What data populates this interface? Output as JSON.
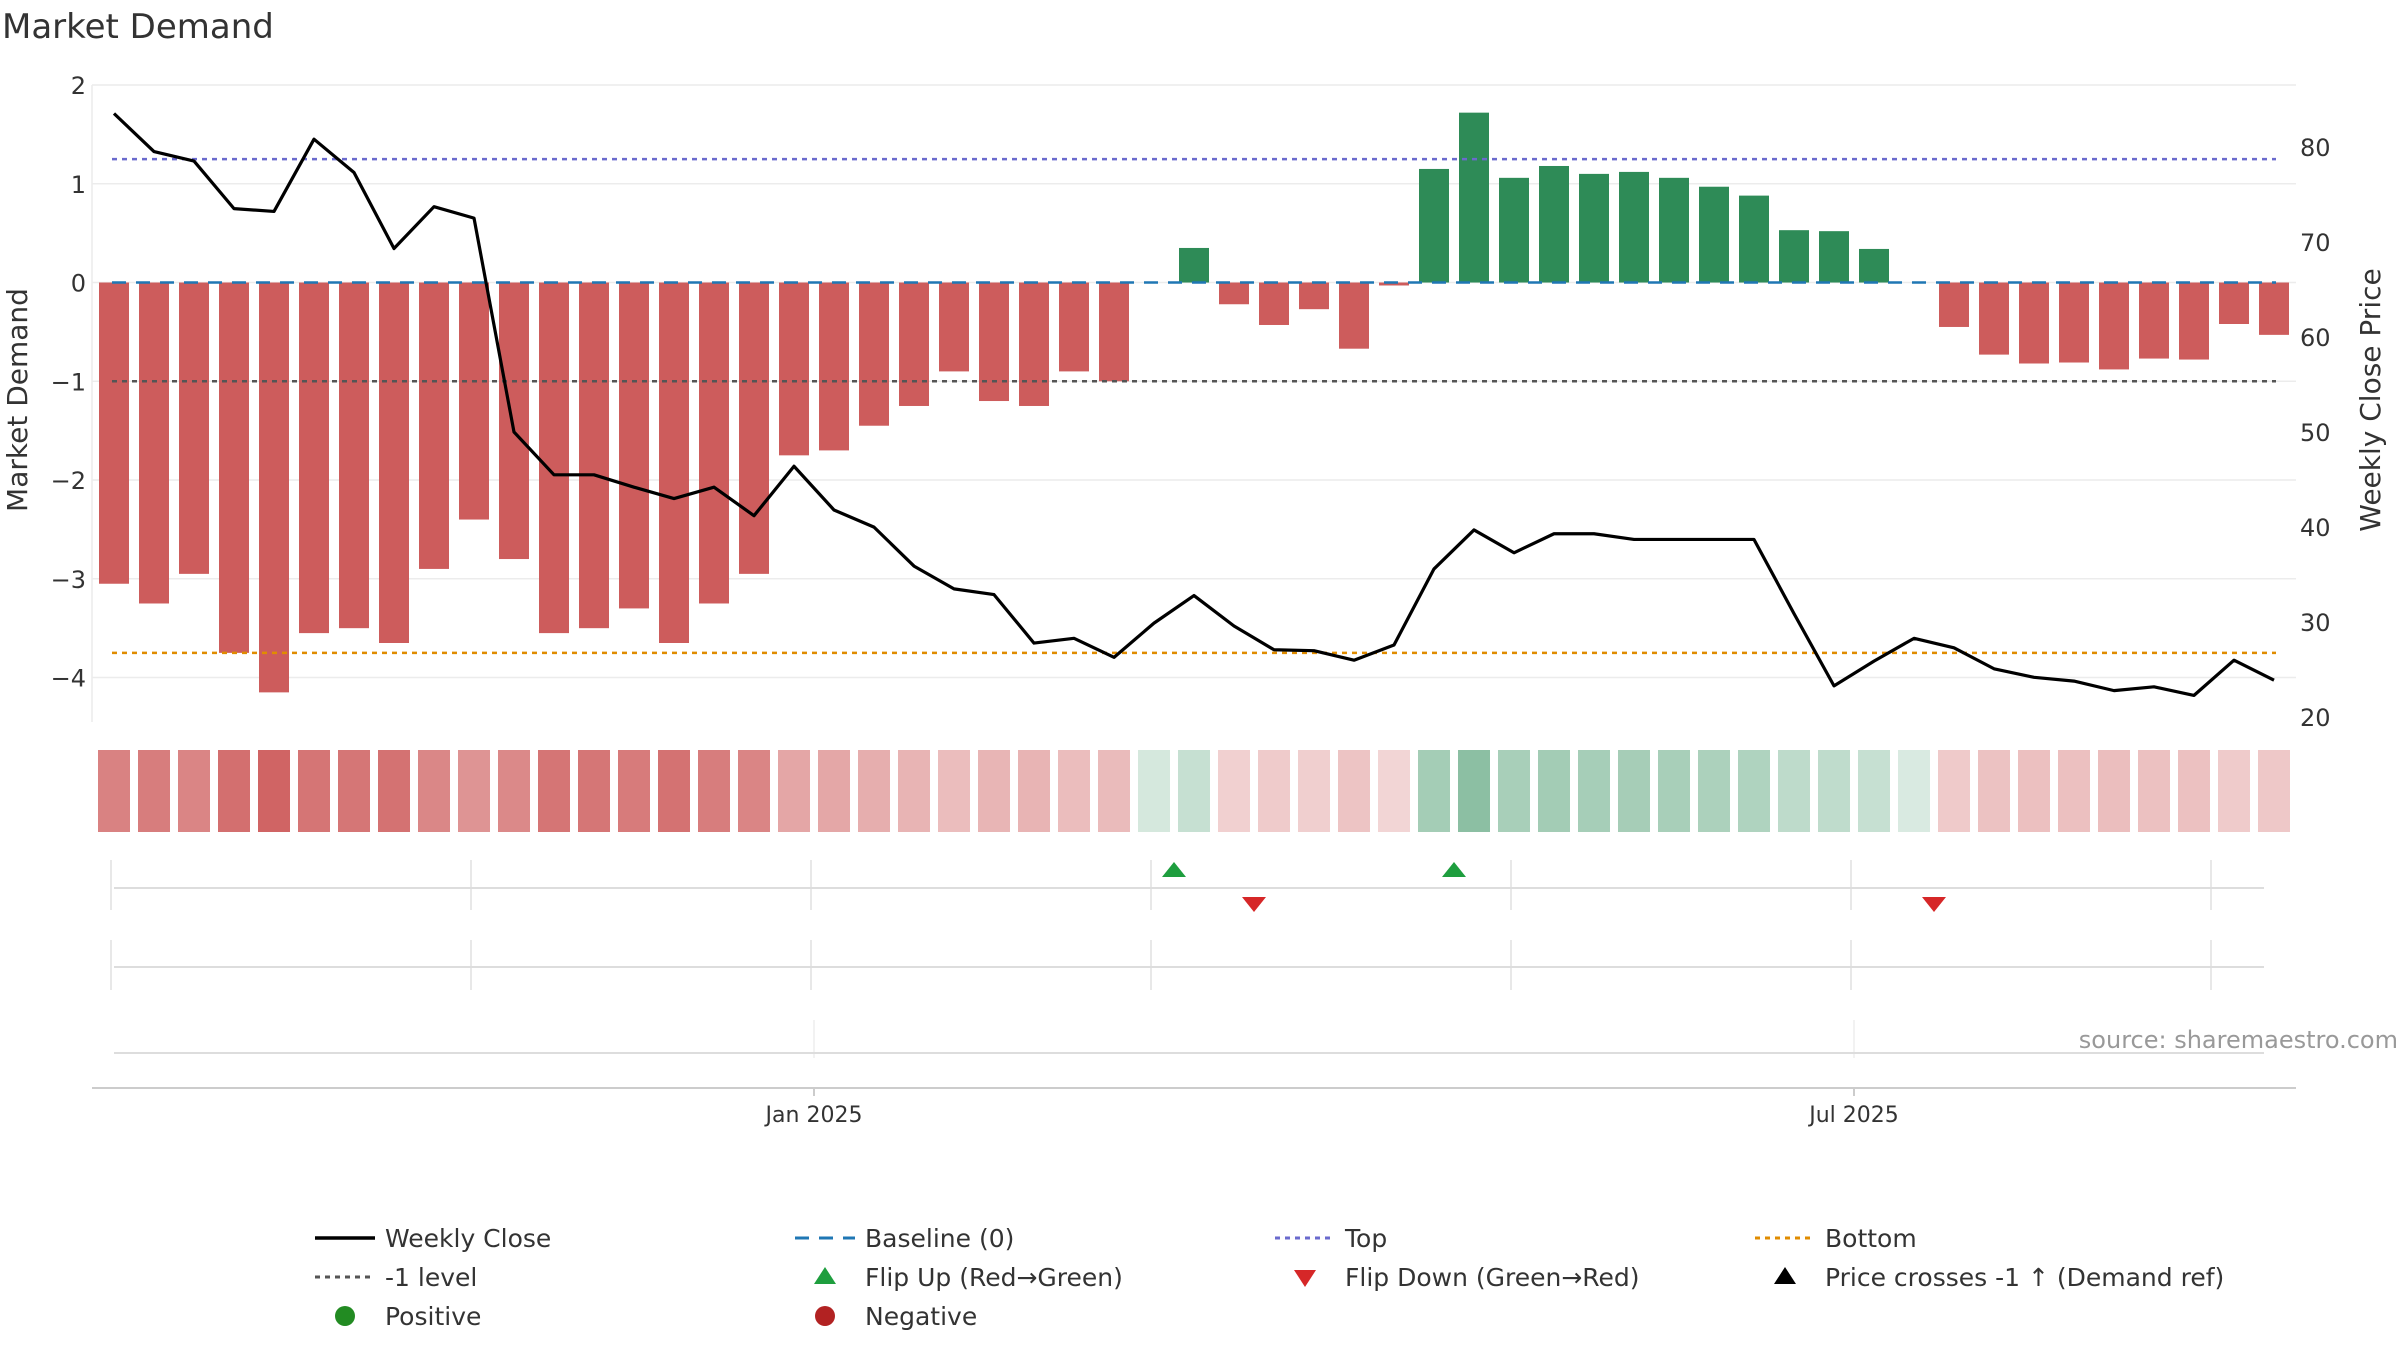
{
  "title": "Market Demand",
  "source": "source: sharemaestro.com",
  "colors": {
    "bar_positive": "#2e8b57",
    "bar_negative": "#cd5c5c",
    "price_line": "#000000",
    "baseline": "#1f77b4",
    "top": "#6a6acd",
    "bottom": "#e08c00",
    "minus_one": "#555555",
    "flip_up": "#1e9e3e",
    "flip_down": "#d62728",
    "positive_dot": "#228b22",
    "negative_dot": "#b22222"
  },
  "legend": [
    {
      "label": "Weekly Close",
      "symbol": "line-solid",
      "color": "#000000"
    },
    {
      "label": "Baseline (0)",
      "symbol": "line-dash",
      "color": "#1f77b4"
    },
    {
      "label": "Top",
      "symbol": "line-dot",
      "color": "#6a6acd"
    },
    {
      "label": "Bottom",
      "symbol": "line-dot",
      "color": "#e08c00"
    },
    {
      "label": "-1 level",
      "symbol": "line-dot",
      "color": "#555555"
    },
    {
      "label": "Flip Up (Red→Green)",
      "symbol": "triangle-up",
      "color": "#1e9e3e"
    },
    {
      "label": "Flip Down (Green→Red)",
      "symbol": "triangle-down",
      "color": "#d62728"
    },
    {
      "label": "Price crosses -1 ↑ (Demand ref)",
      "symbol": "triangle-up",
      "color": "#000000"
    },
    {
      "label": "Positive",
      "symbol": "circle",
      "color": "#228b22"
    },
    {
      "label": "Negative",
      "symbol": "circle",
      "color": "#b22222"
    }
  ],
  "chart_data": {
    "type": "bar",
    "x_axis": {
      "tick_labels": [
        "Jan 2025",
        "Jul 2025"
      ],
      "tick_index": [
        17.5,
        43.5
      ]
    },
    "y_left": {
      "label": "Market Demand",
      "ticks": [
        2,
        1,
        0,
        -1,
        -2,
        -3,
        -4
      ],
      "range": [
        -4.45,
        2.0
      ]
    },
    "y_right": {
      "label": "Weekly Close Price",
      "ticks": [
        80,
        70,
        60,
        50,
        40,
        30,
        20
      ],
      "range": [
        19.5,
        86.5
      ]
    },
    "reference_lines": {
      "baseline": 0,
      "top": 1.25,
      "bottom": -3.75,
      "minus_one": -1
    },
    "demand": [
      -3.05,
      -3.25,
      -2.95,
      -3.75,
      -4.15,
      -3.55,
      -3.5,
      -3.65,
      -2.9,
      -2.4,
      -2.8,
      -3.55,
      -3.5,
      -3.3,
      -3.65,
      -3.25,
      -2.95,
      -1.75,
      -1.7,
      -1.45,
      -1.25,
      -0.9,
      -1.2,
      -1.25,
      -0.9,
      -1.0,
      0.0,
      0.35,
      -0.22,
      -0.43,
      -0.27,
      -0.67,
      -0.03,
      1.15,
      1.72,
      1.06,
      1.18,
      1.1,
      1.12,
      1.06,
      0.97,
      0.88,
      0.53,
      0.52,
      0.34,
      0.0,
      -0.45,
      -0.73,
      -0.82,
      -0.81,
      -0.88,
      -0.77,
      -0.78,
      -0.42,
      -0.53
    ],
    "weekly_close": [
      83.5,
      79.5,
      78.5,
      73.5,
      73.2,
      80.8,
      77.3,
      69.3,
      73.7,
      72.5,
      50.0,
      45.5,
      45.5,
      44.2,
      43.0,
      44.2,
      41.2,
      46.4,
      41.8,
      40.0,
      35.9,
      33.5,
      32.9,
      27.8,
      28.3,
      26.3,
      29.9,
      32.8,
      29.6,
      27.1,
      27.0,
      26.0,
      27.6,
      35.6,
      39.7,
      37.3,
      39.3,
      39.3,
      38.7,
      38.7,
      38.7,
      38.7,
      30.9,
      23.3,
      25.9,
      28.3,
      27.3,
      25.1,
      24.2,
      23.8,
      22.8,
      23.2,
      22.3,
      26.0,
      23.9
    ],
    "flip_up_index": [
      26.5,
      33.5
    ],
    "flip_down_index": [
      28.5,
      45.5
    ],
    "strip_ticks_index": [
      0,
      9,
      17.5,
      26,
      35,
      43.5,
      52.5
    ]
  }
}
